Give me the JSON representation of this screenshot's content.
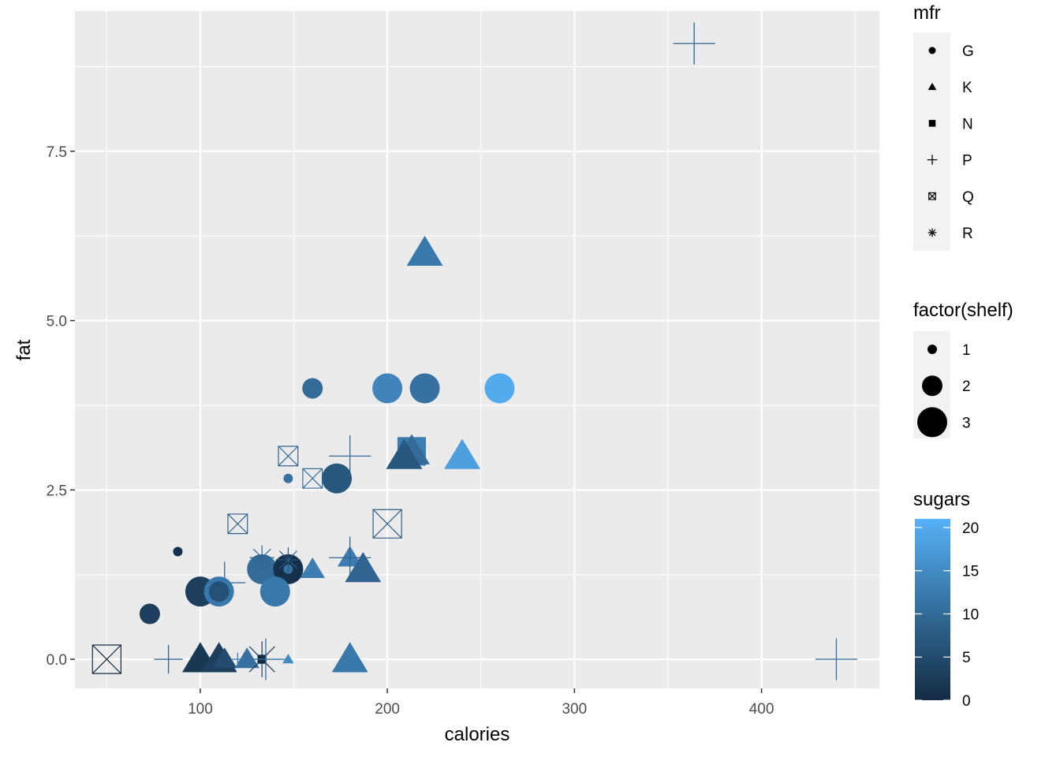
{
  "chart_data": {
    "type": "scatter",
    "xlabel": "calories",
    "ylabel": "fat",
    "xlim": [
      33,
      463
    ],
    "ylim": [
      -0.43,
      9.57
    ],
    "x_ticks": [
      100,
      200,
      300,
      400
    ],
    "x_tick_labels": [
      "100",
      "200",
      "300",
      "400"
    ],
    "y_ticks": [
      0,
      2.5,
      5,
      7.5
    ],
    "y_tick_labels": [
      "0.0",
      "2.5",
      "5.0",
      "7.5"
    ],
    "grid": true,
    "panel_background": "#EBEBEB",
    "color_low": "#132B43",
    "color_high": "#56B1F7",
    "points": [
      {
        "x": 364,
        "y": 9.09,
        "mfr": "P",
        "shelf": 3,
        "sugars": 9
      },
      {
        "x": 440,
        "y": 0,
        "mfr": "P",
        "shelf": 3,
        "sugars": 11
      },
      {
        "x": 220,
        "y": 6,
        "mfr": "K",
        "shelf": 3,
        "sugars": 12
      },
      {
        "x": 160,
        "y": 4,
        "mfr": "G",
        "shelf": 2,
        "sugars": 10
      },
      {
        "x": 200,
        "y": 4,
        "mfr": "G",
        "shelf": 3,
        "sugars": 14
      },
      {
        "x": 220,
        "y": 4,
        "mfr": "G",
        "shelf": 3,
        "sugars": 11
      },
      {
        "x": 260,
        "y": 4,
        "mfr": "G",
        "shelf": 3,
        "sugars": 20
      },
      {
        "x": 147,
        "y": 3,
        "mfr": "Q",
        "shelf": 2,
        "sugars": 9
      },
      {
        "x": 160,
        "y": 2.67,
        "mfr": "Q",
        "shelf": 2,
        "sugars": 11
      },
      {
        "x": 180,
        "y": 3,
        "mfr": "P",
        "shelf": 3,
        "sugars": 10
      },
      {
        "x": 213,
        "y": 3.07,
        "mfr": "N",
        "shelf": 3,
        "sugars": 13
      },
      {
        "x": 213,
        "y": 3.07,
        "mfr": "K",
        "shelf": 3,
        "sugars": 10
      },
      {
        "x": 209,
        "y": 3,
        "mfr": "K",
        "shelf": 3,
        "sugars": 7
      },
      {
        "x": 240,
        "y": 3,
        "mfr": "K",
        "shelf": 3,
        "sugars": 18
      },
      {
        "x": 173,
        "y": 2.67,
        "mfr": "G",
        "shelf": 3,
        "sugars": 7
      },
      {
        "x": 147,
        "y": 2.67,
        "mfr": "G",
        "shelf": 1,
        "sugars": 11
      },
      {
        "x": 120,
        "y": 2,
        "mfr": "Q",
        "shelf": 2,
        "sugars": 8
      },
      {
        "x": 200,
        "y": 2,
        "mfr": "Q",
        "shelf": 3,
        "sugars": 8
      },
      {
        "x": 88,
        "y": 1.59,
        "mfr": "G",
        "shelf": 1,
        "sugars": 1
      },
      {
        "x": 180,
        "y": 1.5,
        "mfr": "K",
        "shelf": 2,
        "sugars": 13
      },
      {
        "x": 180,
        "y": 1.5,
        "mfr": "P",
        "shelf": 3,
        "sugars": 9
      },
      {
        "x": 187,
        "y": 1.33,
        "mfr": "K",
        "shelf": 3,
        "sugars": 9
      },
      {
        "x": 133,
        "y": 1.33,
        "mfr": "G",
        "shelf": 3,
        "sugars": 10
      },
      {
        "x": 147,
        "y": 1.33,
        "mfr": "G",
        "shelf": 3,
        "sugars": 1
      },
      {
        "x": 147,
        "y": 1.33,
        "mfr": "G",
        "shelf": 1,
        "sugars": 11
      },
      {
        "x": 160,
        "y": 1.33,
        "mfr": "K",
        "shelf": 2,
        "sugars": 13
      },
      {
        "x": 133,
        "y": 1.5,
        "mfr": "R",
        "shelf": 2,
        "sugars": 9
      },
      {
        "x": 147,
        "y": 1.47,
        "mfr": "R",
        "shelf": 2,
        "sugars": 7
      },
      {
        "x": 113,
        "y": 1.13,
        "mfr": "P",
        "shelf": 3,
        "sugars": 9
      },
      {
        "x": 100,
        "y": 1,
        "mfr": "G",
        "shelf": 3,
        "sugars": 3
      },
      {
        "x": 110,
        "y": 1,
        "mfr": "G",
        "shelf": 3,
        "sugars": 12
      },
      {
        "x": 110,
        "y": 1,
        "mfr": "G",
        "shelf": 2,
        "sugars": 6
      },
      {
        "x": 140,
        "y": 1,
        "mfr": "G",
        "shelf": 3,
        "sugars": 12
      },
      {
        "x": 73,
        "y": 0.67,
        "mfr": "G",
        "shelf": 2,
        "sugars": 3
      },
      {
        "x": 50,
        "y": 0,
        "mfr": "Q",
        "shelf": 3,
        "sugars": 0
      },
      {
        "x": 83,
        "y": 0,
        "mfr": "P",
        "shelf": 2,
        "sugars": 9
      },
      {
        "x": 100,
        "y": 0,
        "mfr": "K",
        "shelf": 3,
        "sugars": 2
      },
      {
        "x": 110,
        "y": 0,
        "mfr": "K",
        "shelf": 3,
        "sugars": 3
      },
      {
        "x": 113,
        "y": 0,
        "mfr": "K",
        "shelf": 2,
        "sugars": 5
      },
      {
        "x": 125,
        "y": 0,
        "mfr": "K",
        "shelf": 2,
        "sugars": 11
      },
      {
        "x": 133,
        "y": 0,
        "mfr": "R",
        "shelf": 3,
        "sugars": 3
      },
      {
        "x": 133,
        "y": 0,
        "mfr": "N",
        "shelf": 1,
        "sugars": 0
      },
      {
        "x": 135,
        "y": 0,
        "mfr": "P",
        "shelf": 3,
        "sugars": 11
      },
      {
        "x": 147,
        "y": 0,
        "mfr": "K",
        "shelf": 1,
        "sugars": 15
      },
      {
        "x": 180,
        "y": 0,
        "mfr": "K",
        "shelf": 3,
        "sugars": 12
      },
      {
        "x": 120,
        "y": 0,
        "mfr": "P",
        "shelf": 1,
        "sugars": 13
      }
    ],
    "legends": {
      "shape": {
        "title": "mfr",
        "labels": [
          "G",
          "K",
          "N",
          "P",
          "Q",
          "R"
        ]
      },
      "size": {
        "title": "factor(shelf)",
        "labels": [
          "1",
          "2",
          "3"
        ]
      },
      "color": {
        "title": "sugars",
        "breaks": [
          0,
          5,
          10,
          15,
          20
        ],
        "labels": [
          "0",
          "5",
          "10",
          "15",
          "20"
        ],
        "limits": [
          0,
          21
        ]
      }
    }
  }
}
